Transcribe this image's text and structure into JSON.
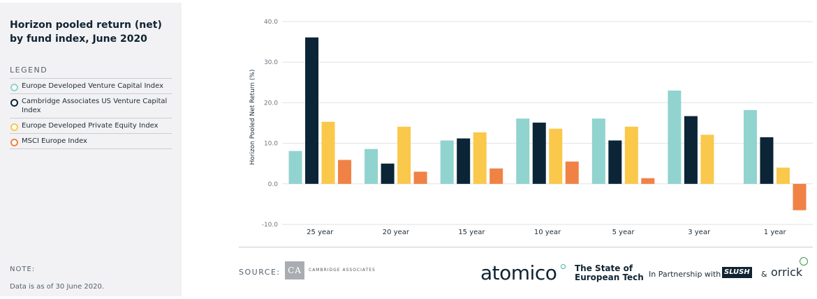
{
  "sidebar": {
    "title": "Horizon pooled return (net) by fund index, June 2020",
    "legend_heading": "LEGEND",
    "legend": [
      {
        "label": "Europe Developed Venture Capital Index",
        "color": "#91d3cf"
      },
      {
        "label": "Cambridge Associates US Venture Capital Index",
        "color": "#0b2537"
      },
      {
        "label": "Europe Developed Private Equity Index",
        "color": "#fac84a"
      },
      {
        "label": "MSCI Europe Index",
        "color": "#f08246"
      }
    ],
    "note_heading": "NOTE:",
    "note_text": "Data is as of 30 June 2020."
  },
  "chart_data": {
    "type": "bar",
    "title": "Horizon pooled return (net) by fund index, June 2020",
    "xlabel": "",
    "ylabel": "Horizon Pooled Net Return (%)",
    "ylim": [
      -10,
      40
    ],
    "yticks": [
      -10,
      0,
      10,
      20,
      30,
      40
    ],
    "ytick_labels": [
      "-10.0",
      "0.0",
      "10.0",
      "20.0",
      "30.0",
      "40.0"
    ],
    "categories": [
      "25 year",
      "20 year",
      "15 year",
      "10 year",
      "5 year",
      "3 year",
      "1 year"
    ],
    "series": [
      {
        "name": "Europe Developed Venture Capital Index",
        "color": "#91d3cf",
        "values": [
          8.1,
          8.6,
          10.7,
          16.1,
          16.1,
          23.0,
          18.2
        ]
      },
      {
        "name": "Cambridge Associates US Venture Capital Index",
        "color": "#0b2537",
        "values": [
          36.1,
          5.0,
          11.2,
          15.1,
          10.7,
          16.7,
          11.5
        ]
      },
      {
        "name": "Europe Developed Private Equity Index",
        "color": "#fac84a",
        "values": [
          15.3,
          14.1,
          12.7,
          13.6,
          14.1,
          12.1,
          4.0
        ]
      },
      {
        "name": "MSCI Europe Index",
        "color": "#f08246",
        "values": [
          5.9,
          3.0,
          3.8,
          5.5,
          1.4,
          null,
          -6.5
        ]
      }
    ],
    "grid": true,
    "legend_position": "left-panel"
  },
  "footer": {
    "source_label": "SOURCE:",
    "ca_logo_text": "CA",
    "ca_name": "CAMBRIDGE ASSOCIATES",
    "atomico": "atomico",
    "state_line1": "The State of",
    "state_line2": "European Tech",
    "partnership": "In Partnership with",
    "slush": "SLUSH",
    "amp": "&",
    "orrick": "orrick"
  }
}
